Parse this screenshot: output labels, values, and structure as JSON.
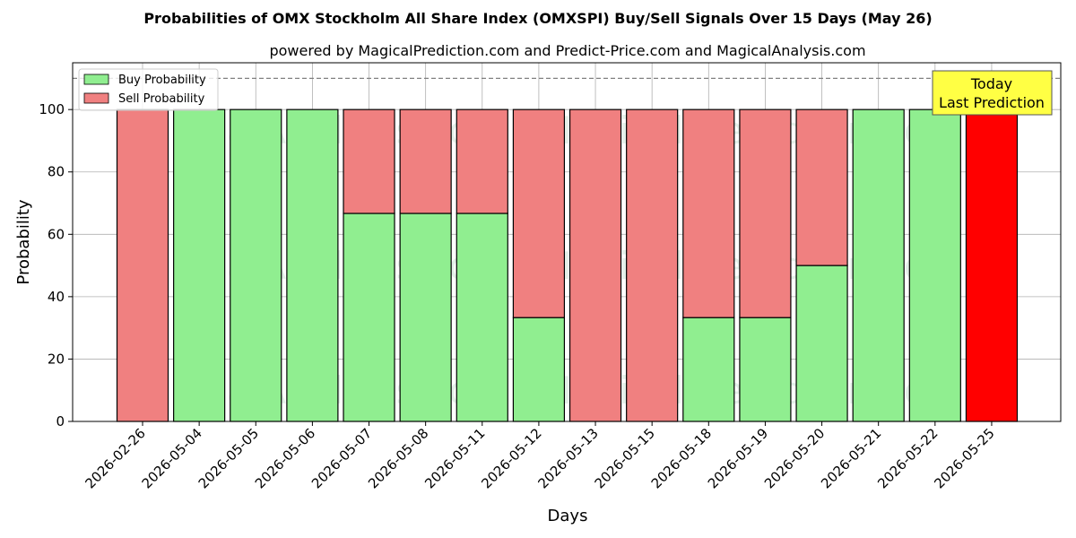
{
  "chart_data": {
    "type": "bar",
    "stacked": true,
    "title": "Probabilities of OMX Stockholm All Share Index (OMXSPI) Buy/Sell Signals Over 15 Days (May 26)",
    "subtitle": "powered by MagicalPrediction.com and Predict-Price.com and MagicalAnalysis.com",
    "xlabel": "Days",
    "ylabel": "Probability",
    "ylim": [
      0,
      115
    ],
    "yticks": [
      0,
      20,
      40,
      60,
      80,
      100
    ],
    "grid": true,
    "legend_position": "top-left",
    "reference_line": 110,
    "categories": [
      "2026-02-26",
      "2026-05-04",
      "2026-05-05",
      "2026-05-06",
      "2026-05-07",
      "2026-05-08",
      "2026-05-11",
      "2026-05-12",
      "2026-05-13",
      "2026-05-15",
      "2026-05-18",
      "2026-05-19",
      "2026-05-20",
      "2026-05-21",
      "2026-05-22",
      "2026-05-25"
    ],
    "series": [
      {
        "name": "Buy Probability",
        "color": "#90ee90",
        "values": [
          0,
          100,
          100,
          100,
          66.7,
          66.7,
          66.7,
          33.3,
          0,
          0,
          33.3,
          33.3,
          50,
          100,
          100,
          0
        ]
      },
      {
        "name": "Sell Probability",
        "color": "#f08080",
        "values": [
          100,
          0,
          0,
          0,
          33.3,
          33.3,
          33.3,
          66.7,
          100,
          100,
          66.7,
          66.7,
          50,
          0,
          0,
          100
        ]
      }
    ],
    "highlight": {
      "index": 15,
      "color": "#ff0000"
    },
    "annotation": {
      "line1": "Today",
      "line2": "Last Prediction",
      "bg": "#ffff44"
    },
    "watermarks": [
      "MagicalAnalysis.com",
      "MagicalPrediction.com"
    ]
  }
}
